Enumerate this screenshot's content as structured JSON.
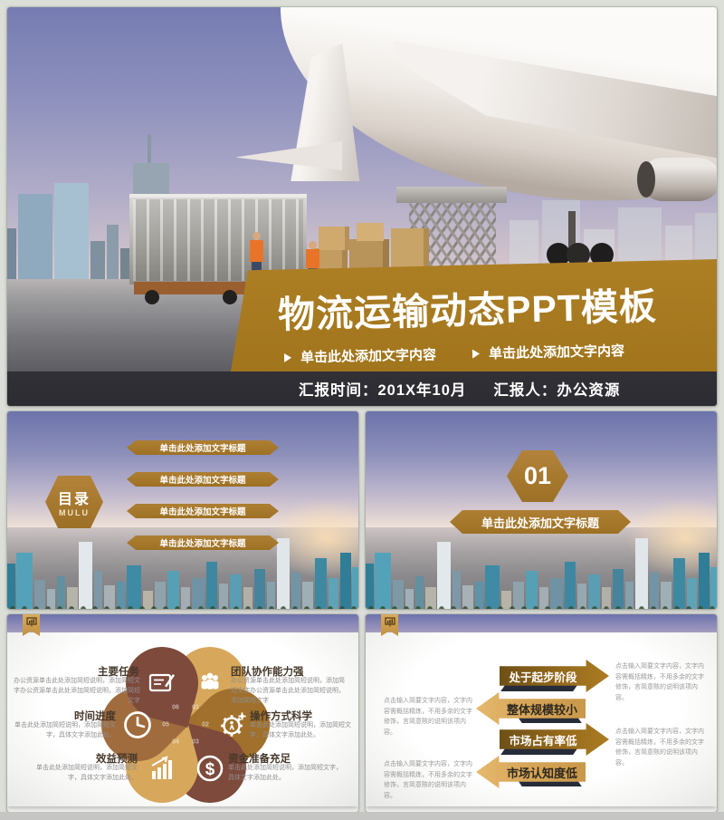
{
  "colors": {
    "gold": "#a1751c",
    "bronze": "#a5782e",
    "light_gold": "#d7a75c",
    "brown": "#a0702c",
    "maroon": "#7d4a3c",
    "strip_dark": "#202026"
  },
  "slides": {
    "cover": {
      "title": "物流运输动态PPT模板",
      "bullet1": "单击此处添加文字内容",
      "bullet2": "单击此处添加文字内容",
      "footer_time": "汇报时间：201X年10月",
      "footer_reporter": "汇报人：办公资源"
    },
    "toc": {
      "hex_title": "目录",
      "hex_subtitle": "MULU",
      "items": [
        "单击此处添加文字标题",
        "单击此处添加文字标题",
        "单击此处添加文字标题",
        "单击此处添加文字标题"
      ]
    },
    "section": {
      "number": "01",
      "title": "单击此处添加文字标题"
    },
    "flower": {
      "items": [
        {
          "num": "01",
          "title": "团队协作能力强",
          "icon": "people-icon",
          "desc": "办公资源单击此处添加简短说明，添加简短文字办公资源单击此处添加简短说明，添加简短文字"
        },
        {
          "num": "02",
          "title": "操作方式科学",
          "icon": "gear-icon",
          "desc": "单击此处添加简短说明，添加简短文字，具体文字添加此处。"
        },
        {
          "num": "03",
          "title": "资金准备充足",
          "icon": "dollar-icon",
          "desc": "单击此处添加简短说明，添加简短文字，具体文字添加此处。"
        },
        {
          "num": "04",
          "title": "效益预测",
          "icon": "bar-chart-icon",
          "desc": "单击此处添加简短说明，添加简短文字，具体文字添加此处。"
        },
        {
          "num": "05",
          "title": "时间进度",
          "icon": "clock-icon",
          "desc": "单击此处添加简短说明，添加简短文字，具体文字添加此处。"
        },
        {
          "num": "06",
          "title": "主要任务",
          "icon": "note-icon",
          "desc": "办公资源单击此处添加简短说明，添加简短文字办公资源单击此处添加简短说明，添加简短文字"
        }
      ]
    },
    "arrows": {
      "items": [
        {
          "label": "处于起步阶段",
          "dir": "right",
          "desc": "点击输入简要文字内容，文字内容需概括精炼，不用多余的文字修饰，言简意赅的说明该项内容。"
        },
        {
          "label": "整体规模较小",
          "dir": "left",
          "desc": "点击输入简要文字内容，文字内容需概括精炼，不用多余的文字修饰，言简意赅的说明该项内容。"
        },
        {
          "label": "市场占有率低",
          "dir": "right",
          "desc": "点击输入简要文字内容，文字内容需概括精炼，不用多余的文字修饰，言简意赅的说明该项内容。"
        },
        {
          "label": "市场认知度低",
          "dir": "left",
          "desc": "点击输入简要文字内容，文字内容需概括精炼，不用多余的文字修饰，言简意赅的说明该项内容。"
        }
      ]
    }
  }
}
